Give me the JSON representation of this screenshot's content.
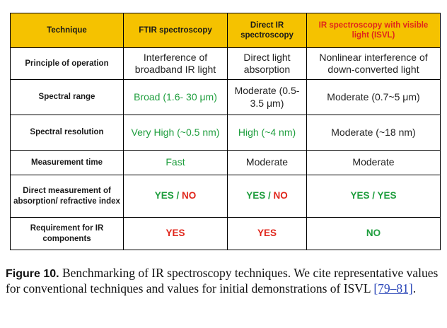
{
  "table": {
    "headers": [
      "Technique",
      "FTIR spectroscopy",
      "Direct IR spectroscopy",
      "IR spectroscopy with visible light (ISVL)"
    ],
    "colors": {
      "header_bg": "#f5c200",
      "green": "#1f9e3e",
      "red": "#e0261b"
    },
    "rows": [
      {
        "label": "Principle of operation",
        "ftir": "Interference of broadband IR light",
        "direct": "Direct light absorption",
        "isvl": "Nonlinear interference of down-converted light"
      },
      {
        "label": "Spectral range",
        "ftir": "Broad (1.6- 30 μm)",
        "direct": "Moderate (0.5- 3.5 μm)",
        "isvl": "Moderate (0.7~5 μm)"
      },
      {
        "label": "Spectral resolution",
        "ftir": "Very High (~0.5 nm)",
        "direct": "High (~4 nm)",
        "isvl": "Moderate (~18 nm)"
      },
      {
        "label": "Measurement time",
        "ftir": "Fast",
        "direct": "Moderate",
        "isvl": "Moderate"
      },
      {
        "label": "Direct measurement of absorption/ refractive index",
        "ftir_a": "YES",
        "ftir_sep": " / ",
        "ftir_b": "NO",
        "direct_a": "YES",
        "direct_sep": " / ",
        "direct_b": "NO",
        "isvl_a": "YES",
        "isvl_sep": " / ",
        "isvl_b": "YES"
      },
      {
        "label": "Requirement for IR components",
        "ftir": "YES",
        "direct": "YES",
        "isvl": "NO"
      }
    ]
  },
  "caption": {
    "label": "Figure 10.",
    "text_before": " Benchmarking of IR spectroscopy techniques. We cite representative values for conventional techniques and values for initial demonstrations of ISVL ",
    "ref": "[79–81]",
    "text_after": "."
  }
}
